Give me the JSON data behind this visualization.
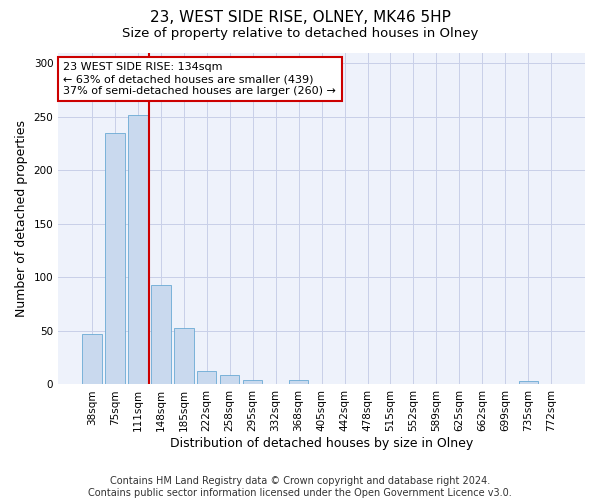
{
  "title": "23, WEST SIDE RISE, OLNEY, MK46 5HP",
  "subtitle": "Size of property relative to detached houses in Olney",
  "xlabel": "Distribution of detached houses by size in Olney",
  "ylabel": "Number of detached properties",
  "bar_color": "#c9d9ee",
  "bar_edge_color": "#6aaad4",
  "background_color": "#eef2fb",
  "grid_color": "#c8cfe8",
  "annotation_box_color": "#cc0000",
  "vline_color": "#cc0000",
  "categories": [
    "38sqm",
    "75sqm",
    "111sqm",
    "148sqm",
    "185sqm",
    "222sqm",
    "258sqm",
    "295sqm",
    "332sqm",
    "368sqm",
    "405sqm",
    "442sqm",
    "478sqm",
    "515sqm",
    "552sqm",
    "589sqm",
    "625sqm",
    "662sqm",
    "699sqm",
    "735sqm",
    "772sqm"
  ],
  "values": [
    47,
    235,
    252,
    93,
    53,
    13,
    9,
    4,
    0,
    4,
    0,
    0,
    0,
    0,
    0,
    0,
    0,
    0,
    0,
    3,
    0
  ],
  "ylim": [
    0,
    310
  ],
  "yticks": [
    0,
    50,
    100,
    150,
    200,
    250,
    300
  ],
  "property_label": "23 WEST SIDE RISE: 134sqm",
  "smaller_pct": 63,
  "smaller_count": 439,
  "larger_pct": 37,
  "larger_count": 260,
  "vline_x": 2.5,
  "footer_line1": "Contains HM Land Registry data © Crown copyright and database right 2024.",
  "footer_line2": "Contains public sector information licensed under the Open Government Licence v3.0.",
  "title_fontsize": 11,
  "subtitle_fontsize": 9.5,
  "axis_label_fontsize": 9,
  "tick_fontsize": 7.5,
  "annotation_fontsize": 8,
  "footer_fontsize": 7
}
